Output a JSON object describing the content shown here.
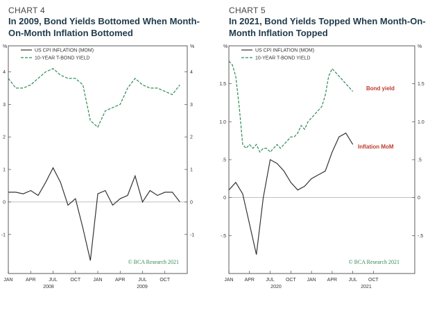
{
  "chart_data": [
    {
      "type": "line",
      "kicker": "CHART 4",
      "title": "In 2009, Bond Yields Bottomed When Month-On-Month Inflation Bottomed",
      "unit_label": "%",
      "watermark": "© BCA Research 2021",
      "month_labels": [
        "JAN",
        "APR",
        "JUL",
        "OCT",
        "JAN",
        "APR",
        "JUL",
        "OCT"
      ],
      "year_labels": [
        "2008",
        "2009"
      ],
      "left_axis": {
        "ylim": [
          -2.2,
          4.8
        ],
        "ticks": [
          "4",
          "3",
          "2",
          "1",
          "0",
          "-1"
        ]
      },
      "right_axis": {
        "ylim": [
          -2.2,
          4.8
        ],
        "ticks": [
          "4",
          "3",
          "2",
          "1",
          "0",
          "-1"
        ]
      },
      "series": [
        {
          "name": "US CPI INFLATION (MOM)",
          "style": "solid",
          "color": "#333333",
          "x": [
            0,
            1,
            2,
            3,
            4,
            5,
            6,
            7,
            8,
            9,
            10,
            11,
            12,
            13,
            14,
            15,
            16,
            17,
            18,
            19,
            20,
            21,
            22,
            23
          ],
          "y": [
            0.3,
            0.3,
            0.25,
            0.35,
            0.2,
            0.6,
            1.05,
            0.6,
            -0.1,
            0.1,
            -0.8,
            -1.8,
            0.25,
            0.35,
            -0.1,
            0.1,
            0.2,
            0.8,
            0.0,
            0.35,
            0.2,
            0.3,
            0.3,
            0.0
          ]
        },
        {
          "name": "10-YEAR T-BOND YIELD",
          "style": "dashed",
          "color": "#2e8b57",
          "x": [
            0,
            1,
            2,
            3,
            4,
            5,
            6,
            7,
            8,
            9,
            10,
            11,
            12,
            13,
            14,
            15,
            16,
            17,
            18,
            19,
            20,
            21,
            22,
            23
          ],
          "y": [
            3.8,
            3.5,
            3.5,
            3.6,
            3.8,
            4.0,
            4.1,
            3.9,
            3.8,
            3.8,
            3.6,
            2.5,
            2.3,
            2.8,
            2.9,
            3.0,
            3.5,
            3.8,
            3.6,
            3.5,
            3.5,
            3.4,
            3.3,
            3.6
          ]
        }
      ]
    },
    {
      "type": "line",
      "kicker": "CHART 5",
      "title": "In 2021, Bond Yields Topped When Month-On-Month Inflation Topped",
      "unit_label": "%",
      "watermark": "© BCA Research 2021",
      "month_labels": [
        "JAN",
        "APR",
        "JUL",
        "OCT",
        "JAN",
        "APR",
        "JUL",
        "OCT"
      ],
      "year_labels": [
        "2020",
        "2021"
      ],
      "left_axis": {
        "ylim": [
          -1.0,
          2.0
        ],
        "ticks": [
          "1.5",
          "1.0",
          ".5",
          "0",
          "-.5"
        ]
      },
      "right_axis": {
        "ylim": [
          -1.0,
          2.0
        ],
        "ticks": [
          "1.5",
          "1.0",
          ".5",
          "0",
          "-.5"
        ]
      },
      "annotations": [
        {
          "text": "Bond yield"
        },
        {
          "text": "Inflation MoM"
        }
      ],
      "series": [
        {
          "name": "US CPI INFLATION (MOM)",
          "style": "solid",
          "color": "#333333",
          "x": [
            0,
            1,
            2,
            3,
            4,
            5,
            6,
            7,
            8,
            9,
            10,
            11,
            12,
            13,
            14,
            15,
            16,
            17,
            18
          ],
          "y": [
            0.1,
            0.2,
            0.05,
            -0.35,
            -0.75,
            0.0,
            0.5,
            0.45,
            0.35,
            0.2,
            0.1,
            0.15,
            0.25,
            0.3,
            0.35,
            0.6,
            0.8,
            0.85,
            0.7
          ]
        },
        {
          "name": "10-YEAR T-BOND YIELD",
          "style": "dashed",
          "color": "#2e8b57",
          "x": [
            0,
            0.5,
            1,
            1.5,
            2,
            2.5,
            3,
            3.5,
            4,
            4.5,
            5,
            5.5,
            6,
            6.5,
            7,
            7.5,
            8,
            8.5,
            9,
            9.5,
            10,
            10.5,
            11,
            11.5,
            12,
            12.5,
            13,
            13.5,
            14,
            14.5,
            15,
            15.5,
            16,
            16.5,
            17,
            17.5,
            18
          ],
          "y": [
            1.8,
            1.75,
            1.6,
            1.2,
            0.7,
            0.65,
            0.7,
            0.65,
            0.7,
            0.6,
            0.65,
            0.65,
            0.6,
            0.65,
            0.7,
            0.65,
            0.7,
            0.75,
            0.8,
            0.8,
            0.85,
            0.95,
            0.9,
            1.0,
            1.05,
            1.1,
            1.15,
            1.2,
            1.35,
            1.6,
            1.7,
            1.65,
            1.6,
            1.55,
            1.5,
            1.45,
            1.4
          ]
        }
      ]
    }
  ]
}
